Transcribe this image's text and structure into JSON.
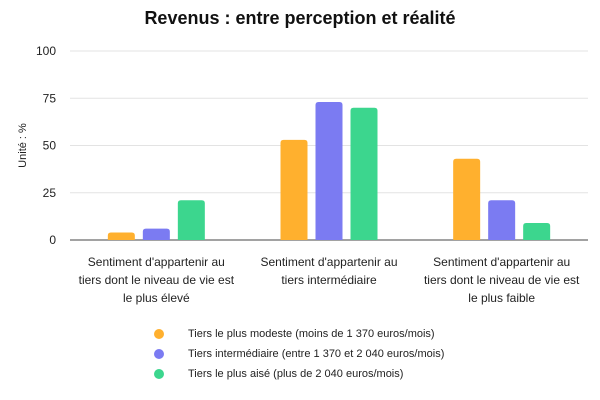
{
  "chart_data": {
    "type": "bar",
    "title": "Revenus : entre perception et réalité",
    "ylabel": "Unité : %",
    "xlabel": "",
    "ylim": [
      0,
      100
    ],
    "yticks": [
      0,
      25,
      50,
      75,
      100
    ],
    "grid": true,
    "legend_position": "bottom",
    "categories": [
      [
        "Sentiment d'appartenir au",
        "tiers dont le niveau de vie est",
        "le plus élevé"
      ],
      [
        "Sentiment d'appartenir au",
        "tiers intermédiaire"
      ],
      [
        "Sentiment d'appartenir au",
        "tiers dont le niveau de vie est",
        "le plus faible"
      ]
    ],
    "series": [
      {
        "name": "Tiers le plus modeste (moins de 1 370 euros/mois)",
        "color": "#FFB02E",
        "values": [
          4,
          53,
          43
        ]
      },
      {
        "name": "Tiers intermédiaire (entre 1 370 et 2 040 euros/mois)",
        "color": "#7B7BF2",
        "values": [
          6,
          73,
          21
        ]
      },
      {
        "name": "Tiers le plus aisé (plus de 2 040 euros/mois)",
        "color": "#3CD68E",
        "values": [
          21,
          70,
          9
        ]
      }
    ]
  }
}
